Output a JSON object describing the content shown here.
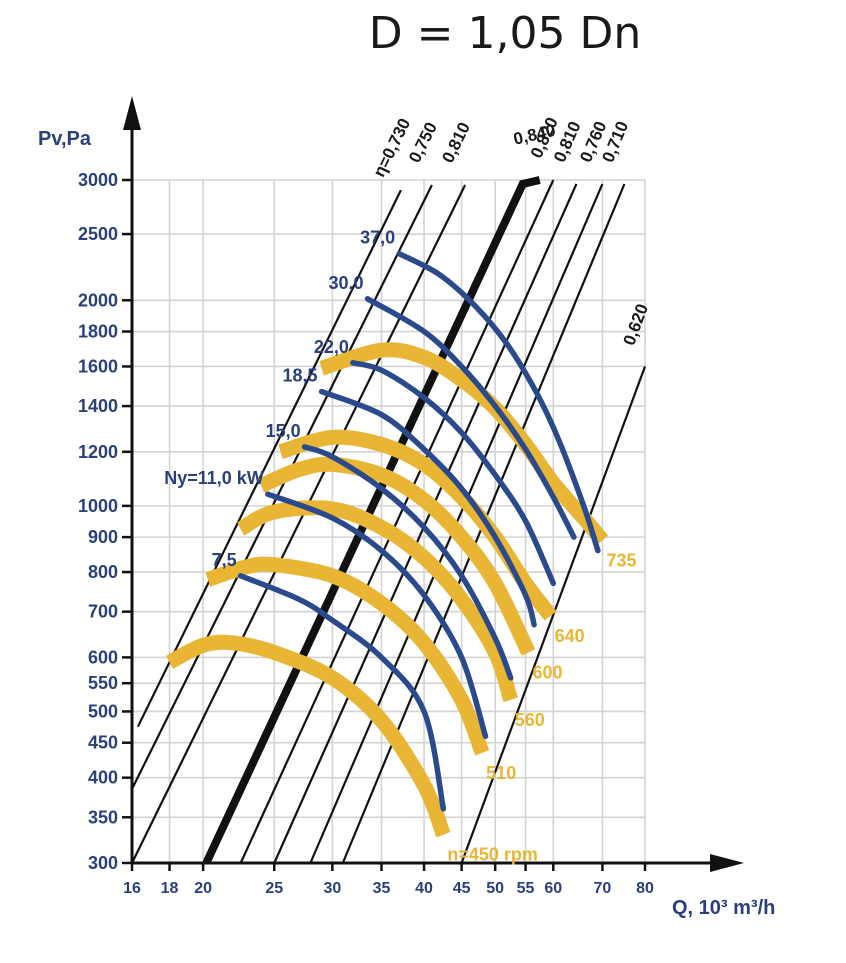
{
  "chart_data": {
    "type": "line",
    "title": "D = 1,05 Dn",
    "xlabel": "Q, 10³ m³/h",
    "ylabel": "Pv,Pa",
    "x_scale": "log",
    "y_scale": "log",
    "xlim": [
      16,
      80
    ],
    "ylim": [
      300,
      3000
    ],
    "x_ticks": [
      16,
      18,
      20,
      25,
      30,
      35,
      40,
      45,
      50,
      55,
      60,
      70,
      80
    ],
    "x_tick_labels": [
      "16",
      "18",
      "20",
      "25",
      "30",
      "35",
      "40",
      "45",
      "50",
      "55",
      "60",
      "70",
      "80"
    ],
    "y_ticks": [
      300,
      350,
      400,
      450,
      500,
      550,
      600,
      700,
      800,
      900,
      1000,
      1200,
      1400,
      1600,
      1800,
      2000,
      2500,
      3000
    ],
    "y_tick_labels": [
      "300",
      "350",
      "400",
      "450",
      "500",
      "550",
      "600",
      "700",
      "800",
      "900",
      "1000",
      "1200",
      "1400",
      "1600",
      "1800",
      "2000",
      "2500",
      "3000"
    ],
    "grid": true,
    "colors": {
      "rpm_curve": "#e8b535",
      "power_curve": "#2b4a8c",
      "efficiency_line": "#111111",
      "text_blue": "#2b3f7a"
    },
    "efficiency_lines": [
      {
        "label": "η=0,730",
        "points": [
          [
            16.3,
            475
          ],
          [
            37.2,
            2900
          ]
        ]
      },
      {
        "label": "0,750",
        "points": [
          [
            16.0,
            385
          ],
          [
            41.0,
            2950
          ]
        ]
      },
      {
        "label": "0,810",
        "points": [
          [
            16.0,
            300
          ],
          [
            45.5,
            2950
          ]
        ]
      },
      {
        "label": "0,840",
        "points": [
          [
            20.2,
            300
          ],
          [
            54.5,
            2960
          ],
          [
            57.5,
            3000
          ]
        ],
        "bold": true
      },
      {
        "label": "0,820",
        "points": [
          [
            22.5,
            300
          ],
          [
            60.0,
            3000
          ]
        ]
      },
      {
        "label": "0,810",
        "points": [
          [
            25.0,
            300
          ],
          [
            64.5,
            2960
          ]
        ]
      },
      {
        "label": "0,760",
        "points": [
          [
            28.0,
            300
          ],
          [
            70.0,
            2960
          ]
        ]
      },
      {
        "label": "0,710",
        "points": [
          [
            31.0,
            300
          ],
          [
            75.0,
            2960
          ]
        ]
      },
      {
        "label": "0,620",
        "points": [
          [
            45.0,
            300
          ],
          [
            80.0,
            1600
          ]
        ]
      }
    ],
    "rpm_series": [
      {
        "label": "n=450 rpm",
        "points": [
          [
            18.0,
            590
          ],
          [
            20.0,
            625
          ],
          [
            22.0,
            630
          ],
          [
            25.0,
            610
          ],
          [
            30.0,
            560
          ],
          [
            35.0,
            485
          ],
          [
            40.0,
            390
          ],
          [
            42.5,
            330
          ]
        ]
      },
      {
        "label": "510",
        "points": [
          [
            20.3,
            780
          ],
          [
            23.0,
            815
          ],
          [
            25.0,
            820
          ],
          [
            30.0,
            790
          ],
          [
            35.0,
            720
          ],
          [
            40.0,
            630
          ],
          [
            45.0,
            520
          ],
          [
            48.0,
            435
          ]
        ]
      },
      {
        "label": "560",
        "points": [
          [
            22.5,
            925
          ],
          [
            25.0,
            980
          ],
          [
            30.0,
            990
          ],
          [
            35.0,
            930
          ],
          [
            40.0,
            840
          ],
          [
            45.0,
            730
          ],
          [
            50.0,
            610
          ],
          [
            52.5,
            520
          ]
        ]
      },
      {
        "label": "600",
        "points": [
          [
            24.0,
            1070
          ],
          [
            27.0,
            1130
          ],
          [
            30.0,
            1150
          ],
          [
            35.0,
            1110
          ],
          [
            40.0,
            1020
          ],
          [
            45.0,
            900
          ],
          [
            50.0,
            770
          ],
          [
            55.5,
            610
          ]
        ]
      },
      {
        "label": "640",
        "points": [
          [
            25.5,
            1200
          ],
          [
            30.0,
            1260
          ],
          [
            35.0,
            1230
          ],
          [
            40.0,
            1150
          ],
          [
            45.0,
            1030
          ],
          [
            50.0,
            900
          ],
          [
            55.0,
            770
          ],
          [
            59.5,
            690
          ]
        ]
      },
      {
        "label": "735",
        "points": [
          [
            29.0,
            1590
          ],
          [
            35.0,
            1690
          ],
          [
            40.0,
            1650
          ],
          [
            45.0,
            1530
          ],
          [
            50.0,
            1390
          ],
          [
            55.0,
            1230
          ],
          [
            60.0,
            1080
          ],
          [
            66.0,
            960
          ],
          [
            70.0,
            890
          ]
        ]
      }
    ],
    "power_series": [
      {
        "label": "7,5",
        "points": [
          [
            22.5,
            790
          ],
          [
            27.0,
            730
          ],
          [
            30.0,
            680
          ],
          [
            35.0,
            600
          ],
          [
            40.0,
            500
          ],
          [
            42.5,
            360
          ]
        ]
      },
      {
        "label": "Ny=11,0 kW",
        "points": [
          [
            24.5,
            1040
          ],
          [
            30.0,
            960
          ],
          [
            35.0,
            860
          ],
          [
            40.0,
            740
          ],
          [
            45.0,
            600
          ],
          [
            48.5,
            460
          ]
        ]
      },
      {
        "label": "15,0",
        "points": [
          [
            27.5,
            1220
          ],
          [
            30.0,
            1180
          ],
          [
            35.0,
            1060
          ],
          [
            40.0,
            930
          ],
          [
            45.0,
            790
          ],
          [
            50.0,
            640
          ],
          [
            52.5,
            560
          ]
        ]
      },
      {
        "label": "18,5",
        "points": [
          [
            29.0,
            1470
          ],
          [
            35.0,
            1360
          ],
          [
            40.0,
            1210
          ],
          [
            45.0,
            1060
          ],
          [
            50.0,
            900
          ],
          [
            55.0,
            740
          ],
          [
            56.5,
            670
          ]
        ]
      },
      {
        "label": "22,0",
        "points": [
          [
            32.0,
            1620
          ],
          [
            35.0,
            1580
          ],
          [
            40.0,
            1440
          ],
          [
            45.0,
            1280
          ],
          [
            50.0,
            1110
          ],
          [
            55.0,
            950
          ],
          [
            60.0,
            770
          ]
        ]
      },
      {
        "label": "30,0",
        "points": [
          [
            33.5,
            2010
          ],
          [
            40.0,
            1800
          ],
          [
            45.0,
            1600
          ],
          [
            50.0,
            1400
          ],
          [
            55.0,
            1210
          ],
          [
            60.0,
            1030
          ],
          [
            64.0,
            900
          ]
        ]
      },
      {
        "label": "37,0",
        "points": [
          [
            37.0,
            2340
          ],
          [
            42.0,
            2180
          ],
          [
            47.0,
            1960
          ],
          [
            52.0,
            1720
          ],
          [
            57.0,
            1460
          ],
          [
            61.0,
            1250
          ],
          [
            66.0,
            1000
          ],
          [
            69.0,
            860
          ]
        ]
      }
    ]
  }
}
